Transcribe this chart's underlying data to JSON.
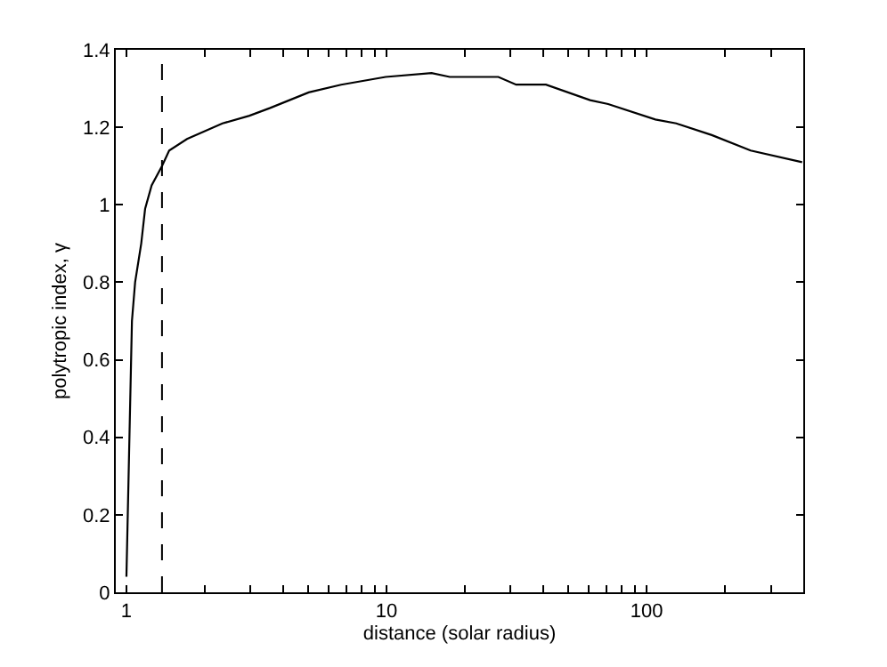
{
  "chart_data": {
    "type": "line",
    "xlabel": "distance (solar radius)",
    "ylabel": "polytropic index, γ",
    "log": "x",
    "marker": "none",
    "line_style": "solid",
    "xlim": [
      0.91,
      400
    ],
    "xticks": [
      1,
      {
        "value": 2,
        "label": null
      },
      {
        "value": 3,
        "label": null
      },
      {
        "value": 4,
        "label": null
      },
      {
        "value": 5,
        "label": null
      },
      {
        "value": 6,
        "label": null
      },
      {
        "value": 7,
        "label": null
      },
      {
        "value": 8,
        "label": null
      },
      {
        "value": 9,
        "label": null
      },
      10,
      {
        "value": 20,
        "label": null
      },
      {
        "value": 30,
        "label": null
      },
      {
        "value": 40,
        "label": null
      },
      {
        "value": 50,
        "label": null
      },
      {
        "value": 60,
        "label": null
      },
      {
        "value": 70,
        "label": null
      },
      {
        "value": 80,
        "label": null
      },
      {
        "value": 90,
        "label": null
      },
      100,
      {
        "value": 200,
        "label": null
      },
      {
        "value": 300,
        "label": null
      }
    ],
    "ylim": [
      0,
      1.4
    ],
    "yticks": [
      0,
      0.2,
      0.4,
      0.6,
      0.8,
      1,
      1.2,
      1.4
    ],
    "ref_lines": [
      {
        "axis": "x",
        "value": 1.37,
        "color": "#000000",
        "line_style": "dashed"
      }
    ],
    "series": [
      {
        "color": "#000000",
        "x": [
          1.0,
          1.05,
          1.08,
          1.14,
          1.18,
          1.25,
          1.37,
          1.46,
          1.71,
          2.0,
          2.34,
          2.97,
          3.57,
          5.02,
          6.69,
          9.92,
          14.9,
          17.5,
          26.9,
          31.5,
          41.0,
          60.6,
          71.1,
          108,
          130,
          178,
          251,
          396
        ],
        "values": [
          0.04,
          0.7,
          0.8,
          0.9,
          0.99,
          1.05,
          1.1,
          1.14,
          1.17,
          1.19,
          1.21,
          1.23,
          1.25,
          1.29,
          1.31,
          1.33,
          1.34,
          1.33,
          1.33,
          1.31,
          1.31,
          1.27,
          1.26,
          1.22,
          1.21,
          1.18,
          1.14,
          1.11
        ]
      }
    ]
  }
}
